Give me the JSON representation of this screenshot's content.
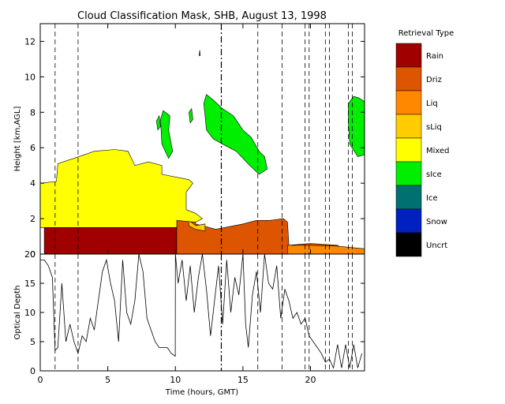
{
  "title": "Cloud Classification Mask, SHB, August 13, 1998",
  "chart_data": [
    {
      "type": "area",
      "name_hint": "classification-mask",
      "ylabel": "Height [km,AGL]",
      "xlim": [
        0,
        24
      ],
      "ylim": [
        0,
        13
      ],
      "xticks": [
        0,
        5,
        10,
        15,
        20
      ],
      "yticks": [
        0,
        2,
        4,
        6,
        8,
        10,
        12
      ],
      "legend": {
        "title": "Retrieval Type",
        "placement": "right",
        "entries": [
          {
            "label": "Rain",
            "color": "#a00000"
          },
          {
            "label": "Driz",
            "color": "#dd5500"
          },
          {
            "label": "Liq",
            "color": "#ff8800"
          },
          {
            "label": "sLiq",
            "color": "#ffcc00"
          },
          {
            "label": "Mixed",
            "color": "#ffff00"
          },
          {
            "label": "sIce",
            "color": "#00ee00"
          },
          {
            "label": "Ice",
            "color": "#007070"
          },
          {
            "label": "Snow",
            "color": "#0020c0"
          },
          {
            "label": "Uncrt",
            "color": "#000000"
          }
        ]
      },
      "regions": [
        {
          "class": "Rain",
          "polygon": [
            [
              0.3,
              0
            ],
            [
              0.3,
              1.5
            ],
            [
              10.1,
              1.5
            ],
            [
              10.1,
              0
            ]
          ]
        },
        {
          "class": "Driz",
          "polygon": [
            [
              10.1,
              0
            ],
            [
              10.1,
              2
            ],
            [
              11.5,
              2
            ],
            [
              11.5,
              1.7
            ],
            [
              13,
              1.4
            ],
            [
              15,
              1.7
            ],
            [
              16,
              1.9
            ],
            [
              17,
              1.9
            ],
            [
              18,
              2
            ],
            [
              18.3,
              1.8
            ],
            [
              18.4,
              0.5
            ],
            [
              20,
              0.6
            ],
            [
              22,
              0.5
            ],
            [
              22.5,
              0.2
            ],
            [
              22.5,
              0
            ]
          ]
        },
        {
          "class": "Liq",
          "polygon": [
            [
              18.3,
              0
            ],
            [
              18.3,
              0.5
            ],
            [
              20,
              0.5
            ],
            [
              22,
              0.45
            ],
            [
              24,
              0.3
            ],
            [
              24,
              0
            ]
          ]
        },
        {
          "class": "sLiq",
          "polygon": [
            [
              11.0,
              1.9
            ],
            [
              11.5,
              1.6
            ],
            [
              12.2,
              1.7
            ],
            [
              12.2,
              1.3
            ],
            [
              11.5,
              1.4
            ],
            [
              11.0,
              1.6
            ]
          ]
        },
        {
          "class": "Mixed",
          "polygon": [
            [
              0,
              1.5
            ],
            [
              0,
              4.0
            ],
            [
              1.2,
              4.1
            ],
            [
              1.3,
              5.1
            ],
            [
              2.5,
              5.4
            ],
            [
              4,
              5.8
            ],
            [
              5.5,
              5.9
            ],
            [
              6.5,
              5.8
            ],
            [
              7,
              5.0
            ],
            [
              8,
              5.2
            ],
            [
              9,
              5.0
            ],
            [
              9,
              4.5
            ],
            [
              11,
              4.2
            ],
            [
              11.3,
              4.0
            ],
            [
              10.8,
              3.5
            ],
            [
              10.8,
              2.5
            ],
            [
              11.5,
              2.3
            ],
            [
              12,
              2
            ],
            [
              11.5,
              1.8
            ],
            [
              10.1,
              1.9
            ],
            [
              10.1,
              1.5
            ]
          ]
        },
        {
          "class": "sIce",
          "polygon": [
            [
              8.9,
              7.6
            ],
            [
              9.1,
              8.1
            ],
            [
              9.6,
              7.8
            ],
            [
              9.5,
              7.0
            ],
            [
              9.8,
              5.8
            ],
            [
              9.5,
              5.4
            ],
            [
              9.0,
              6.2
            ]
          ]
        },
        {
          "class": "sIce",
          "polygon": [
            [
              8.6,
              7.5
            ],
            [
              8.8,
              7.8
            ],
            [
              8.9,
              7.2
            ],
            [
              8.7,
              7.0
            ]
          ]
        },
        {
          "class": "sIce",
          "polygon": [
            [
              11.0,
              8.0
            ],
            [
              11.2,
              8.2
            ],
            [
              11.3,
              7.6
            ],
            [
              11.1,
              7.4
            ]
          ]
        },
        {
          "class": "sIce",
          "polygon": [
            [
              12.1,
              8.5
            ],
            [
              12.3,
              9.0
            ],
            [
              12.8,
              8.7
            ],
            [
              13.5,
              8.2
            ],
            [
              14.3,
              7.8
            ],
            [
              15,
              7.0
            ],
            [
              15.6,
              6.6
            ],
            [
              16.2,
              5.8
            ],
            [
              16.6,
              5.5
            ],
            [
              16.8,
              4.8
            ],
            [
              16.2,
              4.5
            ],
            [
              15.5,
              5.0
            ],
            [
              14.5,
              5.8
            ],
            [
              13.5,
              6.2
            ],
            [
              12.8,
              6.5
            ],
            [
              12.3,
              7.0
            ],
            [
              12.2,
              7.8
            ]
          ]
        },
        {
          "class": "sIce",
          "polygon": [
            [
              22.8,
              7.4
            ],
            [
              22.8,
              8.5
            ],
            [
              23.2,
              8.9
            ],
            [
              23.6,
              8.8
            ],
            [
              24,
              8.6
            ],
            [
              24,
              5.6
            ],
            [
              23.5,
              5.5
            ],
            [
              22.9,
              6.2
            ]
          ]
        },
        {
          "class": "sIce",
          "polygon": [
            [
              11.75,
              11.2
            ],
            [
              11.8,
              11.5
            ],
            [
              11.85,
              11.2
            ]
          ]
        }
      ],
      "vertical_dashed_lines": [
        1.1,
        2.8,
        16.1,
        17.9,
        19.6,
        19.9,
        21.1,
        21.4,
        22.8,
        23.1
      ],
      "vertical_dashdot_lines": [
        13.4
      ]
    },
    {
      "type": "line",
      "name_hint": "optical-depth",
      "ylabel": "Optical Depth",
      "xlabel": "Time (hours, GMT)",
      "xlim": [
        0,
        24
      ],
      "ylim": [
        0,
        20
      ],
      "xticks": [
        0,
        5,
        10,
        15,
        20
      ],
      "yticks": [
        0,
        5,
        10,
        15,
        20
      ],
      "series": [
        {
          "x": [
            0,
            0.3,
            0.6,
            0.9,
            1.1,
            1.3,
            1.6,
            1.9,
            2.2,
            2.5,
            2.8,
            3.1,
            3.4,
            3.7,
            4.0,
            4.3,
            4.6,
            4.9,
            5.2,
            5.5,
            5.8,
            6.1,
            6.4,
            6.7,
            7.0,
            7.3,
            7.6,
            7.9,
            8.2,
            8.5,
            8.8,
            9.1,
            9.4,
            9.7,
            9.99,
            10.0,
            10.2,
            10.5,
            10.8,
            11.1,
            11.4,
            11.7,
            12.0,
            12.3,
            12.6,
            12.9,
            13.2,
            13.5,
            13.8,
            14.1,
            14.4,
            14.7,
            15.0,
            15.2,
            15.4,
            15.7,
            16.0,
            16.3,
            16.6,
            16.9,
            17.2,
            17.5,
            17.8,
            18.1,
            18.4,
            18.7,
            19.0,
            19.3,
            19.6,
            19.9,
            20.2,
            20.5,
            20.8,
            21.1,
            21.4,
            21.7,
            22.0,
            22.3,
            22.6,
            22.9,
            23.2,
            23.5,
            23.8
          ],
          "y": [
            19,
            19,
            18,
            16,
            3.5,
            4,
            15,
            5,
            8,
            5,
            3,
            6,
            5,
            9,
            7,
            12,
            17,
            19,
            15,
            12,
            5,
            19,
            10,
            8,
            12,
            20,
            17,
            9,
            7,
            5,
            4,
            4,
            4,
            3,
            2.5,
            20,
            15,
            19,
            12,
            18,
            10,
            16,
            20,
            14,
            6,
            12,
            18,
            8,
            19,
            10,
            16,
            13,
            20,
            8,
            4,
            13,
            17,
            10,
            20,
            15,
            14,
            18,
            9,
            14,
            12,
            9,
            10,
            8,
            9,
            6,
            5,
            4,
            3,
            1.5,
            2,
            0.5,
            4.5,
            0.5,
            4.5,
            0.5,
            4.5,
            0.5,
            3
          ]
        }
      ]
    }
  ]
}
